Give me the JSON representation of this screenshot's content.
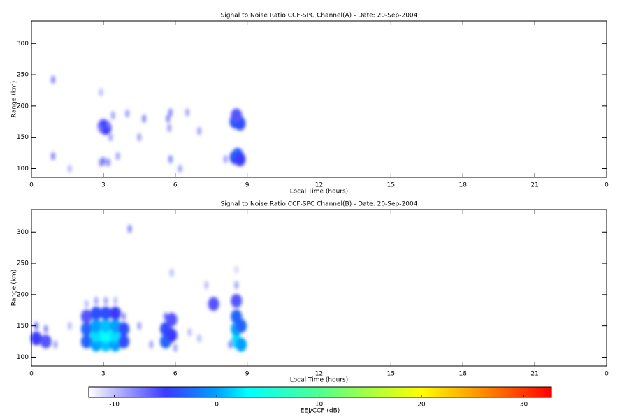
{
  "chart_data": [
    {
      "type": "heatmap",
      "title": "Signal to Noise Ratio CCF-SPC Channel(A) - Date: 20-Sep-2004",
      "x_label": "Local Time (hours)",
      "y_label": "Range (km)",
      "xlim": [
        0,
        24
      ],
      "xticks": [
        0,
        3,
        6,
        9,
        12,
        15,
        18,
        21,
        {
          "value": 24,
          "label": "0"
        }
      ],
      "ylim": [
        86,
        336
      ],
      "yticks": [
        100,
        150,
        200,
        250,
        300
      ],
      "x": [
        0.9,
        3.0,
        3.1,
        2.9,
        3.2,
        3.0,
        2.9,
        3.2,
        3.3,
        3.4,
        3.6,
        4.0,
        4.7,
        5.7,
        5.75,
        5.8,
        5.8,
        6.5,
        6.2,
        7.0,
        4.5,
        8.5,
        8.6,
        8.7,
        8.55,
        8.5,
        8.6,
        8.7,
        8.1,
        0.9,
        1.6,
        2.9
      ],
      "y": [
        242,
        168,
        165,
        163,
        170,
        112,
        110,
        110,
        150,
        185,
        120,
        188,
        180,
        180,
        165,
        190,
        115,
        190,
        100,
        160,
        150,
        175,
        178,
        172,
        185,
        118,
        122,
        115,
        115,
        120,
        100,
        222
      ],
      "values": [
        -8,
        -6,
        -5,
        -7,
        -7,
        -7,
        -8,
        -8,
        -9,
        -9,
        -9,
        -9,
        -8,
        -8,
        -9,
        -8,
        -8,
        -9,
        -9,
        -9,
        -9,
        -4,
        -3,
        -4,
        -6,
        -4,
        -3,
        -5,
        -9,
        -8,
        -10,
        -10
      ]
    },
    {
      "type": "heatmap",
      "title": "Signal to Noise Ratio CCF-SPC Channel(B) - Date: 20-Sep-2004",
      "x_label": "Local Time (hours)",
      "y_label": "Range (km)",
      "xlim": [
        0,
        24
      ],
      "xticks": [
        0,
        3,
        6,
        9,
        12,
        15,
        18,
        21,
        {
          "value": 24,
          "label": "0"
        }
      ],
      "ylim": [
        86,
        336
      ],
      "yticks": [
        100,
        150,
        200,
        250,
        300
      ],
      "x": [
        2.3,
        2.3,
        2.3,
        2.3,
        2.7,
        2.7,
        2.7,
        2.7,
        2.7,
        3.1,
        3.1,
        3.1,
        3.1,
        3.1,
        3.5,
        3.5,
        3.5,
        3.5,
        3.5,
        3.85,
        3.85,
        3.85,
        0.2,
        0.2,
        0.6,
        0.6,
        1.0,
        5.6,
        5.6,
        5.6,
        5.85,
        5.85,
        5.85,
        6.0,
        8.55,
        8.55,
        8.55,
        8.55,
        8.55,
        8.55,
        8.75,
        8.75,
        8.3,
        4.1,
        4.5,
        5.0,
        7.0,
        7.6,
        7.3,
        6.6,
        1.6
      ],
      "y": [
        125,
        145,
        165,
        185,
        120,
        135,
        150,
        170,
        190,
        120,
        135,
        150,
        170,
        190,
        120,
        135,
        150,
        170,
        190,
        125,
        145,
        165,
        130,
        150,
        125,
        145,
        120,
        125,
        145,
        165,
        135,
        160,
        235,
        115,
        125,
        145,
        165,
        190,
        215,
        240,
        120,
        150,
        120,
        305,
        150,
        120,
        130,
        185,
        215,
        140,
        150
      ],
      "values": [
        -3,
        -3,
        -6,
        -10,
        0,
        2,
        0,
        -4,
        -9,
        1,
        3,
        1,
        -4,
        -9,
        0,
        2,
        0,
        -5,
        -10,
        -4,
        -4,
        -8,
        -5,
        -7,
        -6,
        -8,
        -9,
        -3,
        -4,
        -7,
        -5,
        -6,
        -10,
        -9,
        2,
        0,
        -3,
        -6,
        -9,
        -11,
        0,
        -3,
        -8,
        -8,
        -9,
        -9,
        -10,
        -6,
        -10,
        -10,
        -10
      ]
    }
  ],
  "colorbar": {
    "label": "EEJ/CCF (dB)",
    "lim": [
      -12.5,
      32.7
    ],
    "ticks": [
      -10,
      0,
      10,
      20,
      30
    ],
    "colorscale": [
      {
        "value": -12.5,
        "color": "#ffffff"
      },
      {
        "value": -5,
        "color": "#3a3aff"
      },
      {
        "value": 0,
        "color": "#00a0ff"
      },
      {
        "value": 3,
        "color": "#00ffff"
      },
      {
        "value": 10,
        "color": "#50ff90"
      },
      {
        "value": 15,
        "color": "#a8ff40"
      },
      {
        "value": 20,
        "color": "#ffff00"
      },
      {
        "value": 25,
        "color": "#ffa000"
      },
      {
        "value": 32.7,
        "color": "#ff0000"
      }
    ]
  }
}
